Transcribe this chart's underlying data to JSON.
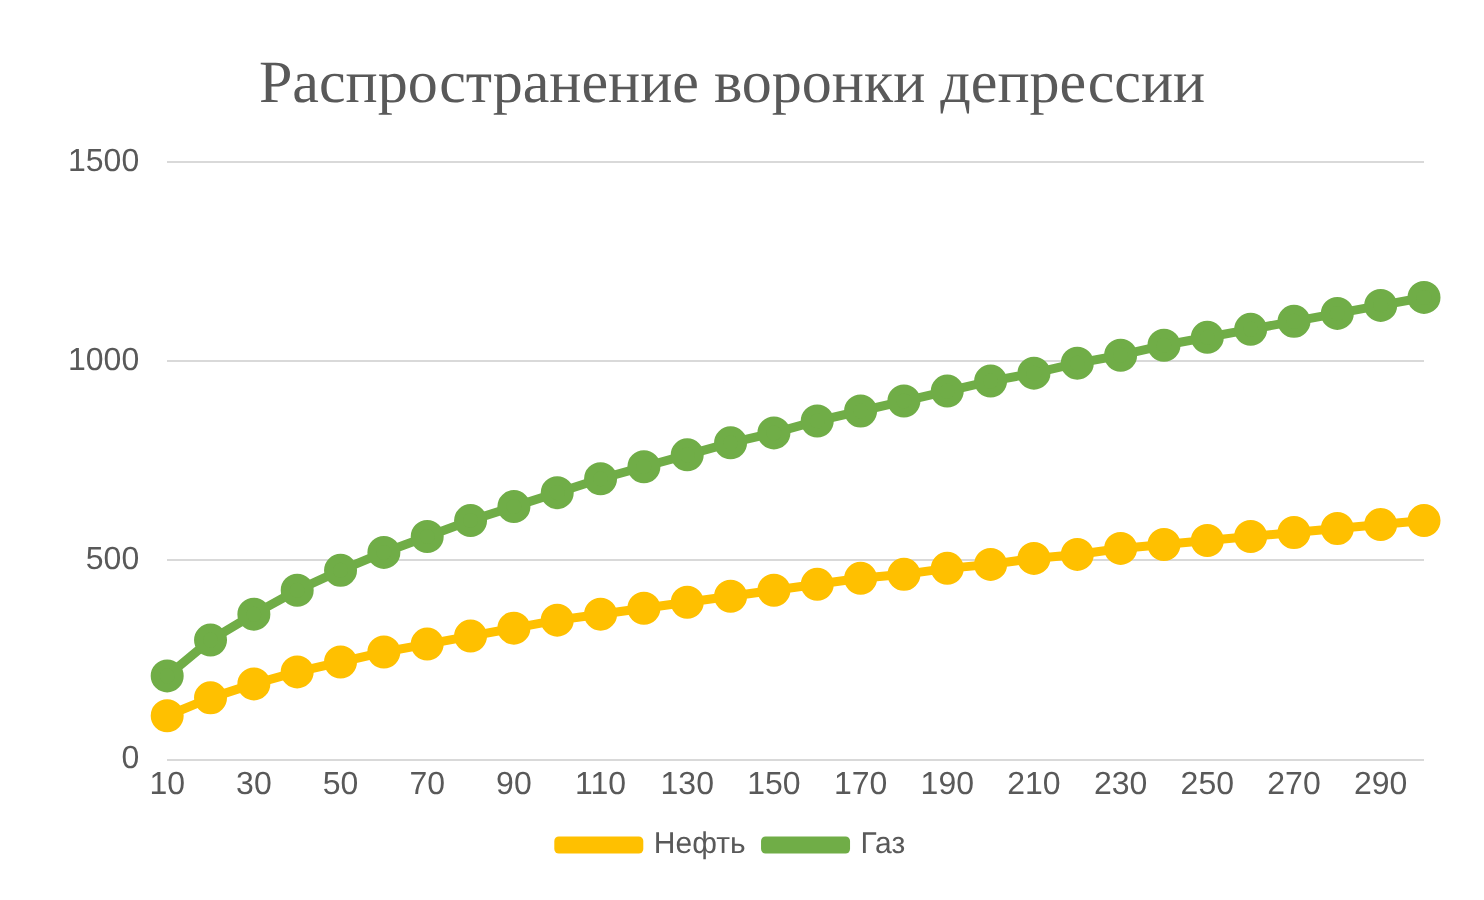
{
  "chart_data": {
    "type": "line",
    "title": "Распространение воронки депрессии",
    "categories": [
      "10",
      null,
      "30",
      null,
      "50",
      null,
      "70",
      null,
      "90",
      null,
      "110",
      null,
      "130",
      null,
      "150",
      null,
      "170",
      null,
      "190",
      null,
      "210",
      null,
      "230",
      null,
      "250",
      null,
      "270",
      null,
      "290",
      null
    ],
    "series": [
      {
        "name": "Нефть",
        "color": "#ffc000",
        "values": [
          110,
          155,
          190,
          220,
          245,
          270,
          290,
          310,
          330,
          350,
          365,
          380,
          395,
          410,
          425,
          440,
          455,
          465,
          480,
          490,
          505,
          515,
          530,
          540,
          550,
          560,
          570,
          580,
          590,
          600
        ]
      },
      {
        "name": "Газ",
        "color": "#70ad47",
        "values": [
          210,
          300,
          365,
          425,
          475,
          520,
          560,
          600,
          635,
          670,
          705,
          735,
          765,
          795,
          820,
          850,
          875,
          900,
          925,
          950,
          970,
          995,
          1015,
          1040,
          1060,
          1080,
          1100,
          1120,
          1140,
          1160
        ]
      }
    ],
    "ylim": [
      0,
      1500
    ],
    "yticks": [
      0,
      500,
      1000,
      1500
    ],
    "grid": "y",
    "legend": "bottom",
    "marker": "circle",
    "line_style": "solid"
  }
}
